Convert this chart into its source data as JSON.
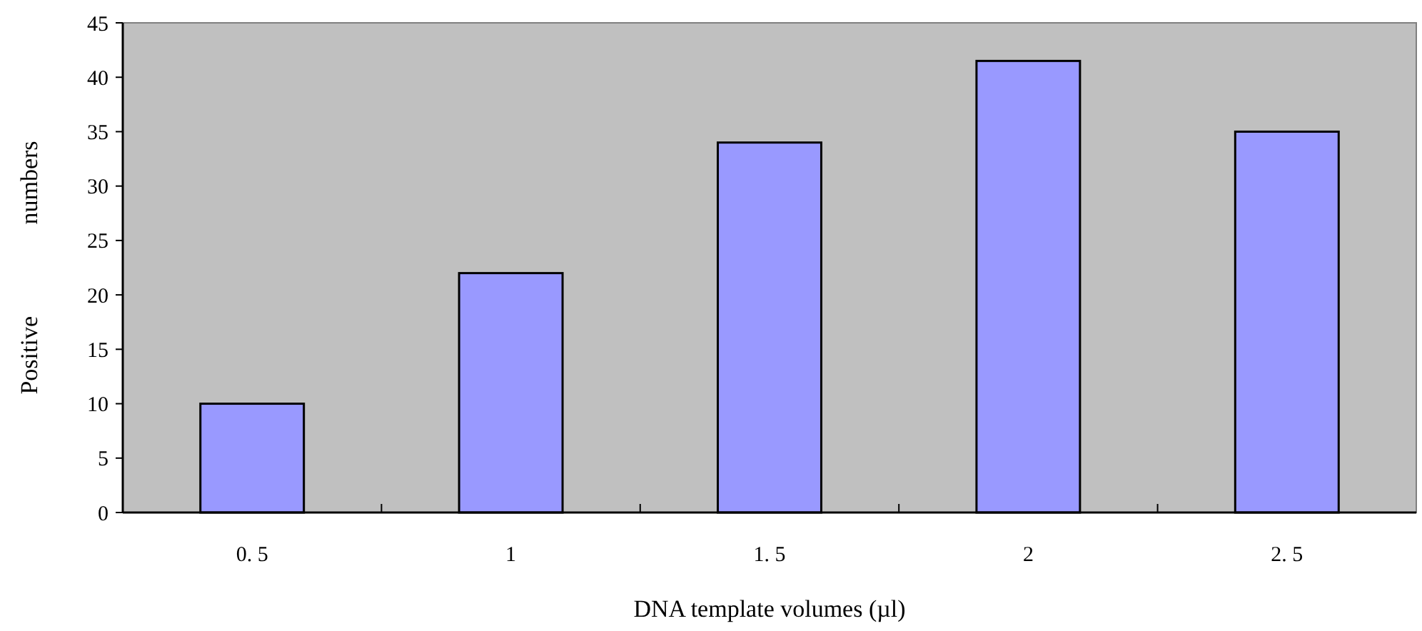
{
  "chart_data": {
    "type": "bar",
    "categories": [
      "0. 5",
      "1",
      "1. 5",
      "2",
      "2. 5"
    ],
    "values": [
      10,
      22,
      34,
      41.5,
      35
    ],
    "color": "#9999ff",
    "ylim": [
      0,
      45
    ],
    "yticks": [
      0,
      5,
      10,
      15,
      20,
      25,
      30,
      35,
      40,
      45
    ],
    "xlabel": "DNA template volumes (µl)",
    "ylabel": "Positive numbers",
    "grid": false
  }
}
